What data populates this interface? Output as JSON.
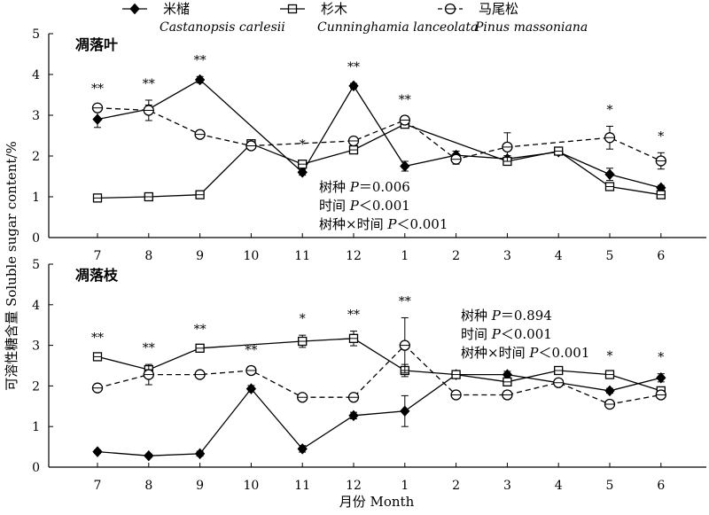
{
  "chart_data": {
    "type": "line",
    "ylabel": "可溶性糖含量 Soluble sugar content/%",
    "xlabel": "月份 Month",
    "categories": [
      "7",
      "8",
      "9",
      "10",
      "11",
      "12",
      "1",
      "2",
      "3",
      "4",
      "5",
      "6"
    ],
    "ylim": [
      0,
      5
    ],
    "yticks": [
      "0",
      "1",
      "2",
      "3",
      "4",
      "5"
    ],
    "legend": [
      {
        "key": "castanopsis",
        "zh": "米槠",
        "latin": "Castanopsis carlesii",
        "marker": "diamond",
        "line": "solid"
      },
      {
        "key": "cunninghamia",
        "zh": "杉木",
        "latin": "Cunninghamia lanceolata",
        "marker": "square",
        "line": "solid"
      },
      {
        "key": "pinus",
        "zh": "马尾松",
        "latin": "Pinus massoniana",
        "marker": "circle",
        "line": "dashed"
      }
    ],
    "panels": [
      {
        "title": "凋落叶",
        "series": {
          "castanopsis": {
            "values": [
              2.9,
              3.15,
              3.87,
              null,
              1.6,
              3.72,
              1.75,
              2.02,
              1.93,
              2.1,
              1.55,
              1.22
            ],
            "err": [
              0.2,
              0.1,
              0.08,
              null,
              0.07,
              0.06,
              0.12,
              0.1,
              0.08,
              0.05,
              0.15,
              0.06
            ]
          },
          "cunninghamia": {
            "values": [
              0.97,
              1.0,
              1.05,
              2.3,
              1.8,
              2.15,
              2.78,
              null,
              1.87,
              2.12,
              1.25,
              1.05
            ],
            "err": [
              0.05,
              0.05,
              0.05,
              0.08,
              0.08,
              0.08,
              0.08,
              null,
              0.08,
              0.06,
              0.06,
              0.06
            ]
          },
          "pinus": {
            "values": [
              3.18,
              3.12,
              2.53,
              2.25,
              null,
              2.37,
              2.88,
              1.92,
              2.22,
              null,
              2.45,
              1.88
            ],
            "err": [
              0.07,
              0.25,
              0.08,
              0.06,
              null,
              0.06,
              0.1,
              0.12,
              0.35,
              null,
              0.28,
              0.2
            ]
          }
        },
        "sig": [
          "**",
          "**",
          "**",
          "",
          "*",
          "**",
          "**",
          "",
          "",
          "",
          "*",
          "*"
        ],
        "stats": [
          {
            "prefix": "树种 ",
            "p": "P",
            "rest": "＝0.006"
          },
          {
            "prefix": "时间 ",
            "p": "P",
            "rest": "＜0.001"
          },
          {
            "prefix": "树种×时间 ",
            "p": "P",
            "rest": "＜0.001"
          }
        ]
      },
      {
        "title": "凋落枝",
        "series": {
          "castanopsis": {
            "values": [
              0.38,
              0.28,
              0.33,
              1.93,
              0.45,
              1.27,
              1.38,
              2.28,
              2.28,
              null,
              1.88,
              2.2
            ],
            "err": [
              0.04,
              0.04,
              0.06,
              0.08,
              0.08,
              0.08,
              0.38,
              0.08,
              0.08,
              null,
              0.06,
              0.1
            ]
          },
          "cunninghamia": {
            "values": [
              2.72,
              2.4,
              2.93,
              null,
              3.1,
              3.17,
              2.38,
              2.28,
              2.1,
              2.38,
              2.28,
              1.88
            ],
            "err": [
              0.06,
              0.1,
              0.06,
              null,
              0.15,
              0.18,
              0.15,
              0.08,
              0.1,
              0.08,
              0.06,
              0.06
            ]
          },
          "pinus": {
            "values": [
              1.95,
              2.28,
              2.28,
              2.38,
              1.72,
              1.72,
              3.0,
              1.78,
              1.78,
              2.08,
              1.55,
              1.78
            ],
            "err": [
              0.05,
              0.25,
              0.06,
              0.1,
              0.05,
              0.05,
              0.68,
              0.05,
              0.1,
              0.06,
              0.05,
              0.08
            ]
          }
        },
        "sig": [
          "**",
          "**",
          "**",
          "**",
          "*",
          "**",
          "**",
          "",
          "",
          "",
          "*",
          "*"
        ],
        "stats": [
          {
            "prefix": "树种 ",
            "p": "P",
            "rest": "＝0.894"
          },
          {
            "prefix": "时间 ",
            "p": "P",
            "rest": "＜0.001"
          },
          {
            "prefix": "树种×时间 ",
            "p": "P",
            "rest": "＜0.001"
          }
        ]
      }
    ]
  }
}
